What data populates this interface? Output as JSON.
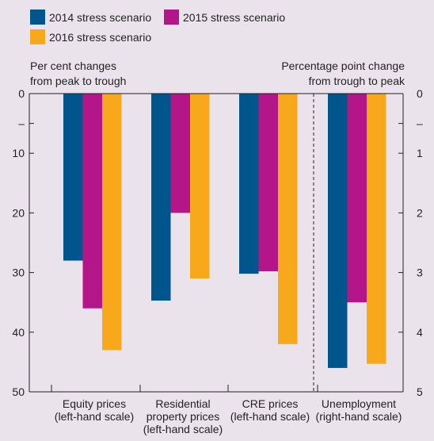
{
  "chart_data": {
    "type": "bar",
    "legend_placement": "top-left",
    "left_axis_title": [
      "Per cent changes",
      "from peak to trough"
    ],
    "right_axis_title": [
      "Percentage point change",
      "from trough to peak"
    ],
    "left_axis": {
      "min": 0,
      "max": 50,
      "ticks": [
        "0",
        "–",
        "10",
        "20",
        "30",
        "40",
        "50"
      ]
    },
    "right_axis": {
      "min": 0,
      "max": 5,
      "ticks": [
        "0",
        "–",
        "1",
        "2",
        "3",
        "4",
        "5"
      ]
    },
    "categories": [
      {
        "label": [
          "Equity prices",
          "(left-hand scale)"
        ],
        "axis": "left"
      },
      {
        "label": [
          "Residential",
          "property prices",
          "(left-hand scale)"
        ],
        "axis": "left"
      },
      {
        "label": [
          "CRE prices",
          "(left-hand scale)"
        ],
        "axis": "left"
      },
      {
        "label": [
          "Unemployment",
          "(right-hand scale)"
        ],
        "axis": "right"
      }
    ],
    "series": [
      {
        "name": "2014 stress scenario",
        "color": "#00558c",
        "values": [
          28,
          34.7,
          30.2,
          4.6
        ]
      },
      {
        "name": "2015 stress scenario",
        "color": "#b4168a",
        "values": [
          36,
          20,
          29.8,
          3.5
        ]
      },
      {
        "name": "2016 stress scenario",
        "color": "#f7a81b",
        "values": [
          43,
          31,
          42,
          4.53
        ]
      }
    ],
    "divider_after_category": 2
  }
}
